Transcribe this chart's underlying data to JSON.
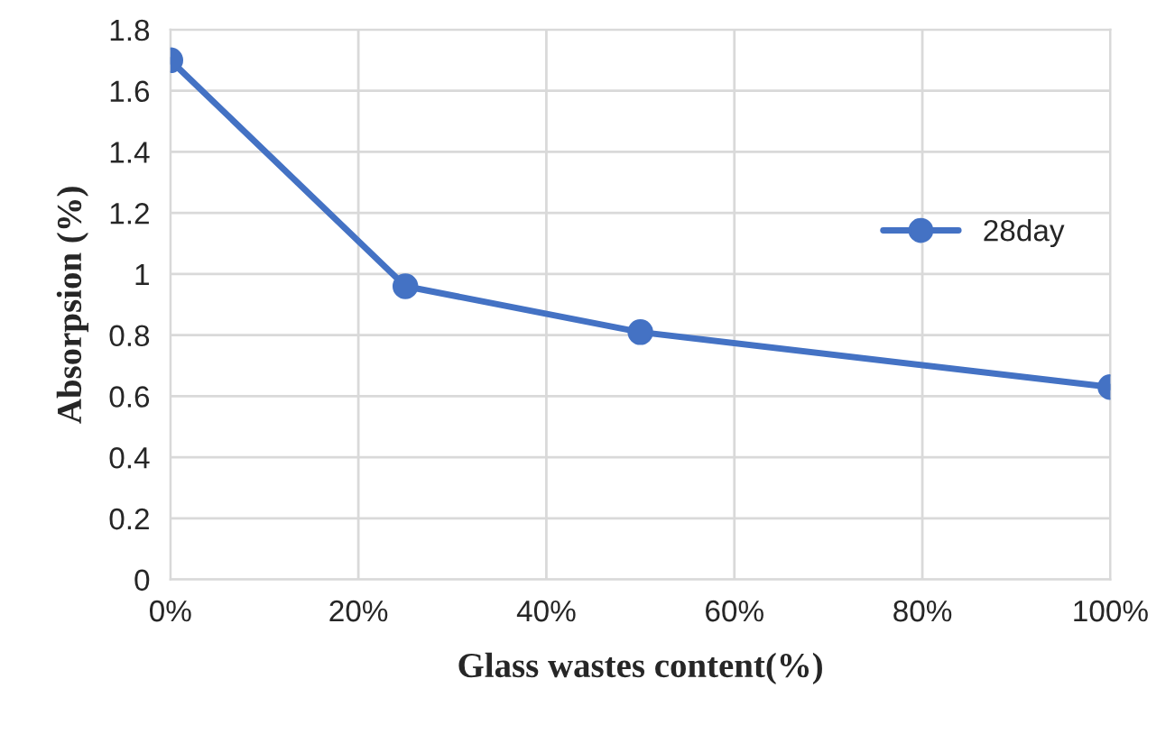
{
  "chart_data": {
    "type": "line",
    "xlabel": "Glass wastes content(%)",
    "ylabel": "Absorpsion (%)",
    "x": [
      0,
      25,
      50,
      100
    ],
    "series": [
      {
        "name": "28day",
        "color": "#4472c4",
        "values": [
          1.7,
          0.96,
          0.81,
          0.63
        ]
      }
    ],
    "xlim": [
      0,
      100
    ],
    "xticks": [
      {
        "value": 0,
        "label": "0%"
      },
      {
        "value": 20,
        "label": "20%"
      },
      {
        "value": 40,
        "label": "40%"
      },
      {
        "value": 60,
        "label": "60%"
      },
      {
        "value": 80,
        "label": "80%"
      },
      {
        "value": 100,
        "label": "100%"
      }
    ],
    "ylim": [
      0,
      1.8
    ],
    "yticks": [
      0,
      0.2,
      0.4,
      0.6,
      0.8,
      1,
      1.2,
      1.4,
      1.6,
      1.8
    ],
    "grid": true,
    "legend": "right",
    "marker": "circle",
    "line_style": "solid"
  }
}
